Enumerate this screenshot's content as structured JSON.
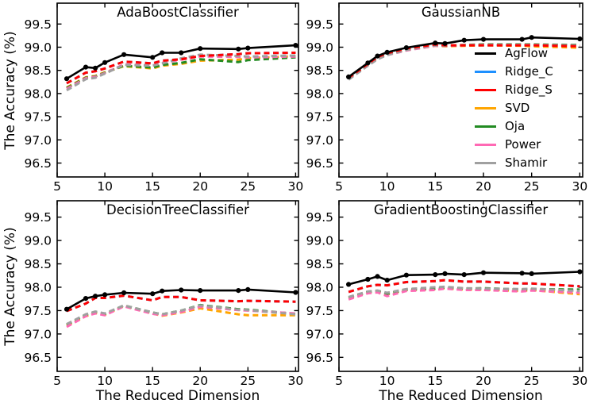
{
  "figure": {
    "ylabel": "The Accuracy (%)",
    "xlabel": "The Reduced Dimension",
    "background": "#ffffff",
    "accent_colors": {
      "agflow": "#000000",
      "ridge_c": "#1E90FF",
      "ridge_s": "#FF0000",
      "svd": "#FFA500",
      "oja": "#228B22",
      "power": "#FF69B4",
      "shamir": "#A0A0A0"
    }
  },
  "legend": {
    "position": "inside top-right subplot, middle-right",
    "items": [
      {
        "label": "AgFlow",
        "color": "#000000"
      },
      {
        "label": "Ridge_C",
        "color": "#1E90FF"
      },
      {
        "label": "Ridge_S",
        "color": "#FF0000"
      },
      {
        "label": "SVD",
        "color": "#FFA500"
      },
      {
        "label": "Oja",
        "color": "#228B22"
      },
      {
        "label": "Power",
        "color": "#FF69B4"
      },
      {
        "label": "Shamir",
        "color": "#A0A0A0"
      }
    ]
  },
  "chart_data": [
    {
      "type": "line",
      "title": "AdaBoostClassifier",
      "xlabel": "",
      "ylabel": "The Accuracy (%)",
      "x": [
        6,
        8,
        9,
        10,
        12,
        15,
        16,
        18,
        20,
        24,
        25,
        30
      ],
      "xlim": [
        5,
        30.3
      ],
      "ylim": [
        96.2,
        99.95
      ],
      "xticks": [
        5,
        10,
        15,
        20,
        25,
        30
      ],
      "yticks": [
        96.5,
        97.0,
        97.5,
        98.0,
        98.5,
        99.0,
        99.5
      ],
      "grid": false,
      "series": [
        {
          "name": "Ridge_C",
          "color": "#1E90FF",
          "dashed": true,
          "marker": false,
          "values": [
            98.22,
            98.45,
            98.48,
            98.54,
            98.69,
            98.65,
            98.71,
            98.74,
            98.81,
            98.85,
            98.87,
            98.88
          ]
        },
        {
          "name": "SVD",
          "color": "#FFA500",
          "dashed": true,
          "marker": false,
          "values": [
            98.13,
            98.35,
            98.38,
            98.46,
            98.59,
            98.54,
            98.6,
            98.64,
            98.71,
            98.73,
            98.76,
            98.81
          ]
        },
        {
          "name": "Oja",
          "color": "#228B22",
          "dashed": true,
          "marker": false,
          "values": [
            98.12,
            98.34,
            98.37,
            98.45,
            98.6,
            98.56,
            98.62,
            98.66,
            98.74,
            98.68,
            98.72,
            98.78
          ]
        },
        {
          "name": "Power",
          "color": "#FF69B4",
          "dashed": true,
          "marker": false,
          "values": [
            98.1,
            98.33,
            98.36,
            98.44,
            98.63,
            98.61,
            98.66,
            98.73,
            98.8,
            98.79,
            98.78,
            98.8
          ]
        },
        {
          "name": "Shamir",
          "color": "#A0A0A0",
          "dashed": true,
          "marker": false,
          "values": [
            98.07,
            98.31,
            98.34,
            98.43,
            98.62,
            98.6,
            98.65,
            98.76,
            98.84,
            98.81,
            98.8,
            98.82
          ]
        },
        {
          "name": "Ridge_S",
          "color": "#FF0000",
          "dashed": true,
          "marker": false,
          "values": [
            98.22,
            98.45,
            98.48,
            98.54,
            98.69,
            98.65,
            98.71,
            98.74,
            98.81,
            98.85,
            98.87,
            98.88
          ]
        },
        {
          "name": "AgFlow",
          "color": "#000000",
          "dashed": false,
          "marker": true,
          "values": [
            98.32,
            98.57,
            98.55,
            98.67,
            98.84,
            98.78,
            98.88,
            98.88,
            98.97,
            98.96,
            98.98,
            99.04
          ]
        }
      ]
    },
    {
      "type": "line",
      "title": "GaussianNB",
      "xlabel": "",
      "ylabel": "",
      "x": [
        6,
        8,
        9,
        10,
        12,
        15,
        16,
        18,
        20,
        24,
        25,
        30
      ],
      "xlim": [
        5,
        30.3
      ],
      "ylim": [
        96.2,
        99.95
      ],
      "xticks": [
        5,
        10,
        15,
        20,
        25,
        30
      ],
      "yticks": [
        96.5,
        97.0,
        97.5,
        98.0,
        98.5,
        99.0,
        99.5
      ],
      "grid": false,
      "has_legend": true,
      "series": [
        {
          "name": "Ridge_C",
          "color": "#1E90FF",
          "dashed": true,
          "marker": false,
          "values": [
            98.34,
            98.64,
            98.79,
            98.87,
            98.97,
            99.06,
            99.04,
            99.04,
            99.04,
            99.04,
            99.04,
            99.02
          ]
        },
        {
          "name": "SVD",
          "color": "#FFA500",
          "dashed": true,
          "marker": false,
          "values": [
            98.32,
            98.61,
            98.76,
            98.84,
            98.94,
            99.03,
            99.02,
            99.03,
            99.04,
            99.03,
            99.02,
            98.99
          ]
        },
        {
          "name": "Oja",
          "color": "#228B22",
          "dashed": true,
          "marker": false,
          "values": [
            98.33,
            98.62,
            98.77,
            98.85,
            98.95,
            99.04,
            99.03,
            99.05,
            99.06,
            99.06,
            99.06,
            99.05
          ]
        },
        {
          "name": "Power",
          "color": "#FF69B4",
          "dashed": true,
          "marker": false,
          "values": [
            98.31,
            98.6,
            98.75,
            98.83,
            98.93,
            99.03,
            99.03,
            99.04,
            99.05,
            99.05,
            99.05,
            99.03
          ]
        },
        {
          "name": "Shamir",
          "color": "#A0A0A0",
          "dashed": true,
          "marker": false,
          "values": [
            98.3,
            98.6,
            98.74,
            98.83,
            98.94,
            99.04,
            99.03,
            99.05,
            99.05,
            99.05,
            99.05,
            99.04
          ]
        },
        {
          "name": "Ridge_S",
          "color": "#FF0000",
          "dashed": true,
          "marker": false,
          "values": [
            98.34,
            98.64,
            98.79,
            98.87,
            98.97,
            99.06,
            99.04,
            99.04,
            99.04,
            99.04,
            99.04,
            99.02
          ]
        },
        {
          "name": "AgFlow",
          "color": "#000000",
          "dashed": false,
          "marker": true,
          "values": [
            98.36,
            98.66,
            98.81,
            98.89,
            98.99,
            99.09,
            99.08,
            99.15,
            99.17,
            99.17,
            99.21,
            99.18
          ]
        }
      ]
    },
    {
      "type": "line",
      "title": "DecisionTreeClassifier",
      "xlabel": "The Reduced Dimension",
      "ylabel": "The Accuracy (%)",
      "x": [
        6,
        8,
        9,
        10,
        12,
        15,
        16,
        18,
        20,
        24,
        25,
        30
      ],
      "xlim": [
        5,
        30.3
      ],
      "ylim": [
        96.2,
        99.85
      ],
      "xticks": [
        5,
        10,
        15,
        20,
        25,
        30
      ],
      "yticks": [
        96.5,
        97.0,
        97.5,
        98.0,
        98.5,
        99.0,
        99.5
      ],
      "grid": false,
      "series": [
        {
          "name": "Ridge_C",
          "color": "#1E90FF",
          "dashed": true,
          "marker": false,
          "values": [
            97.49,
            97.65,
            97.77,
            97.77,
            97.82,
            97.72,
            97.79,
            97.79,
            97.72,
            97.7,
            97.71,
            97.69
          ]
        },
        {
          "name": "SVD",
          "color": "#FFA500",
          "dashed": true,
          "marker": false,
          "values": [
            97.18,
            97.38,
            97.45,
            97.41,
            97.6,
            97.44,
            97.39,
            97.46,
            97.55,
            97.42,
            97.4,
            97.4
          ]
        },
        {
          "name": "Oja",
          "color": "#228B22",
          "dashed": true,
          "marker": false,
          "values": [
            97.2,
            97.41,
            97.47,
            97.43,
            97.61,
            97.46,
            97.42,
            97.5,
            97.62,
            97.53,
            97.52,
            97.43
          ]
        },
        {
          "name": "Power",
          "color": "#FF69B4",
          "dashed": true,
          "marker": false,
          "values": [
            97.15,
            97.38,
            97.44,
            97.4,
            97.59,
            97.43,
            97.4,
            97.47,
            97.58,
            97.51,
            97.5,
            97.44
          ]
        },
        {
          "name": "Shamir",
          "color": "#A0A0A0",
          "dashed": true,
          "marker": false,
          "values": [
            97.21,
            97.42,
            97.48,
            97.44,
            97.61,
            97.46,
            97.42,
            97.5,
            97.61,
            97.52,
            97.51,
            97.42
          ]
        },
        {
          "name": "Ridge_S",
          "color": "#FF0000",
          "dashed": true,
          "marker": false,
          "values": [
            97.49,
            97.65,
            97.77,
            97.77,
            97.82,
            97.72,
            97.79,
            97.79,
            97.72,
            97.7,
            97.71,
            97.69
          ]
        },
        {
          "name": "AgFlow",
          "color": "#000000",
          "dashed": false,
          "marker": true,
          "values": [
            97.53,
            97.76,
            97.81,
            97.84,
            97.88,
            97.86,
            97.92,
            97.94,
            97.93,
            97.93,
            97.95,
            97.89
          ]
        }
      ]
    },
    {
      "type": "line",
      "title": "GradientBoostingClassifier",
      "xlabel": "The Reduced Dimension",
      "ylabel": "",
      "x": [
        6,
        8,
        9,
        10,
        12,
        15,
        16,
        18,
        20,
        24,
        25,
        30
      ],
      "xlim": [
        5,
        30.3
      ],
      "ylim": [
        96.2,
        99.85
      ],
      "xticks": [
        5,
        10,
        15,
        20,
        25,
        30
      ],
      "yticks": [
        96.5,
        97.0,
        97.5,
        98.0,
        98.5,
        99.0,
        99.5
      ],
      "grid": false,
      "series": [
        {
          "name": "Ridge_C",
          "color": "#1E90FF",
          "dashed": true,
          "marker": false,
          "values": [
            97.9,
            98.02,
            98.05,
            98.04,
            98.11,
            98.13,
            98.15,
            98.12,
            98.12,
            98.08,
            98.08,
            98.02
          ]
        },
        {
          "name": "SVD",
          "color": "#FFA500",
          "dashed": true,
          "marker": false,
          "values": [
            97.77,
            97.89,
            97.91,
            97.85,
            97.94,
            97.96,
            97.98,
            97.95,
            97.95,
            97.92,
            97.94,
            97.85
          ]
        },
        {
          "name": "Oja",
          "color": "#228B22",
          "dashed": true,
          "marker": false,
          "values": [
            97.78,
            97.9,
            97.92,
            97.86,
            97.95,
            97.97,
            98.0,
            97.97,
            97.98,
            97.95,
            97.96,
            97.95
          ]
        },
        {
          "name": "Power",
          "color": "#FF69B4",
          "dashed": true,
          "marker": false,
          "values": [
            97.74,
            97.87,
            97.89,
            97.81,
            97.92,
            97.94,
            97.97,
            97.94,
            97.94,
            97.91,
            97.93,
            97.88
          ]
        },
        {
          "name": "Shamir",
          "color": "#A0A0A0",
          "dashed": true,
          "marker": false,
          "values": [
            97.79,
            97.91,
            97.93,
            97.88,
            97.96,
            98.0,
            98.01,
            97.98,
            97.97,
            97.96,
            97.97,
            97.92
          ]
        },
        {
          "name": "Ridge_S",
          "color": "#FF0000",
          "dashed": true,
          "marker": false,
          "values": [
            97.9,
            98.02,
            98.05,
            98.04,
            98.11,
            98.13,
            98.15,
            98.12,
            98.12,
            98.08,
            98.08,
            98.02
          ]
        },
        {
          "name": "AgFlow",
          "color": "#000000",
          "dashed": false,
          "marker": true,
          "values": [
            98.06,
            98.17,
            98.23,
            98.15,
            98.26,
            98.27,
            98.29,
            98.27,
            98.31,
            98.3,
            98.29,
            98.33
          ]
        }
      ]
    }
  ]
}
